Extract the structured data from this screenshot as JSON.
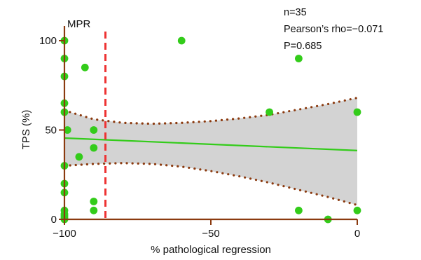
{
  "chart_data": {
    "type": "scatter",
    "xlabel": "% pathological regression",
    "ylabel": "TPS (%)",
    "xlim": [
      -100,
      0
    ],
    "ylim": [
      0,
      105
    ],
    "x_ticks": [
      -100,
      -50,
      0
    ],
    "x_tick_labels": [
      "−100",
      "−50",
      "0"
    ],
    "y_ticks": [
      0,
      50,
      100
    ],
    "y_tick_labels": [
      "0",
      "50",
      "100"
    ],
    "grid": false,
    "colors": {
      "points": "#33cc1a",
      "fit_line": "#33cc1a",
      "ci_fill": "#d3d3d3",
      "ci_border": "#8b3a0f",
      "axes": "#8b3a0f",
      "mpr_line": "#ee3333"
    },
    "points": [
      {
        "x": -100,
        "y": 100
      },
      {
        "x": -100,
        "y": 90
      },
      {
        "x": -100,
        "y": 80
      },
      {
        "x": -100,
        "y": 65
      },
      {
        "x": -100,
        "y": 60
      },
      {
        "x": -100,
        "y": 30
      },
      {
        "x": -100,
        "y": 20
      },
      {
        "x": -100,
        "y": 15
      },
      {
        "x": -100,
        "y": 5
      },
      {
        "x": -100,
        "y": 3
      },
      {
        "x": -100,
        "y": 2
      },
      {
        "x": -100,
        "y": 1
      },
      {
        "x": -100,
        "y": 0
      },
      {
        "x": -99,
        "y": 50
      },
      {
        "x": -95,
        "y": 35
      },
      {
        "x": -93,
        "y": 85
      },
      {
        "x": -90,
        "y": 50
      },
      {
        "x": -90,
        "y": 40
      },
      {
        "x": -90,
        "y": 10
      },
      {
        "x": -90,
        "y": 5
      },
      {
        "x": -60,
        "y": 100
      },
      {
        "x": -30,
        "y": 60
      },
      {
        "x": -20,
        "y": 90
      },
      {
        "x": -20,
        "y": 5
      },
      {
        "x": -10,
        "y": 0
      },
      {
        "x": 0,
        "y": 60
      },
      {
        "x": 0,
        "y": 5
      }
    ],
    "fit_line": {
      "x": [
        -100,
        0
      ],
      "y": [
        45.5,
        38.5
      ]
    },
    "confidence_band": {
      "x": [
        -100,
        -90,
        -80,
        -70,
        -60,
        -50,
        -40,
        -30,
        -20,
        -10,
        0
      ],
      "upper": [
        61,
        56,
        54,
        53.5,
        54,
        55,
        56.5,
        58.5,
        61.5,
        64.5,
        68
      ],
      "lower": [
        30,
        31,
        31.5,
        31,
        29.5,
        27,
        24,
        20.5,
        16.5,
        12.5,
        8
      ]
    },
    "reference_line": {
      "x": -86,
      "label": "MPR"
    },
    "annotations": [
      "n=35",
      "Pearson’s rho=−0.071",
      "P=0.685"
    ]
  }
}
